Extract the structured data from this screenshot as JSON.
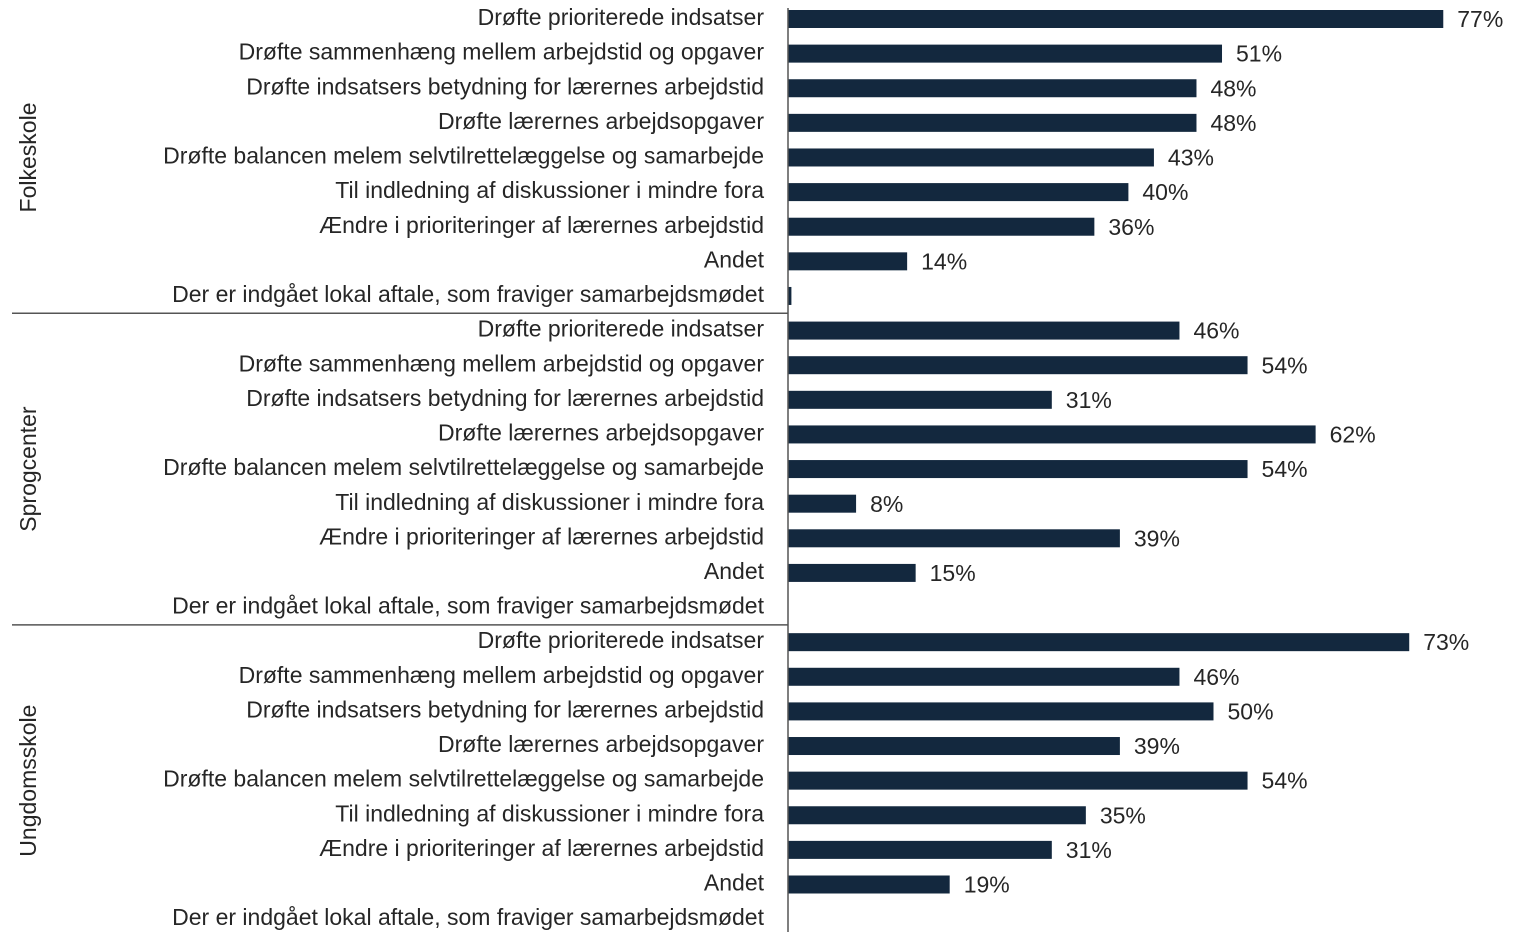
{
  "chart_data": {
    "type": "bar",
    "orientation": "horizontal",
    "color": "#13283e",
    "groups": [
      {
        "name": "Folkeskole",
        "categories": [
          "Drøfte prioriterede indsatser",
          "Drøfte sammenhæng mellem arbejdstid og opgaver",
          "Drøfte indsatsers betydning for lærernes arbejdstid",
          "Drøfte lærernes arbejdsopgaver",
          "Drøfte balancen melem selvtilrettelæggelse og samarbejde",
          "Til indledning af diskussioner i mindre fora",
          "Ændre i prioriteringer af lærernes arbejdstid",
          "Andet",
          "Der er indgået lokal aftale, som fraviger samarbejdsmødet"
        ],
        "values": [
          77,
          51,
          48,
          48,
          43,
          40,
          36,
          14,
          0.4
        ],
        "value_labels": [
          "77%",
          "51%",
          "48%",
          "48%",
          "43%",
          "40%",
          "36%",
          "14%",
          null
        ]
      },
      {
        "name": "Sprogcenter",
        "categories": [
          "Drøfte prioriterede indsatser",
          "Drøfte sammenhæng mellem arbejdstid og opgaver",
          "Drøfte indsatsers betydning for lærernes arbejdstid",
          "Drøfte lærernes arbejdsopgaver",
          "Drøfte balancen melem selvtilrettelæggelse og samarbejde",
          "Til indledning af diskussioner i mindre fora",
          "Ændre i prioriteringer af lærernes arbejdstid",
          "Andet",
          "Der er indgået lokal aftale, som fraviger samarbejdsmødet"
        ],
        "values": [
          46,
          54,
          31,
          62,
          54,
          8,
          39,
          15,
          0
        ],
        "value_labels": [
          "46%",
          "54%",
          "31%",
          "62%",
          "54%",
          "8%",
          "39%",
          "15%",
          null
        ]
      },
      {
        "name": "Ungdomsskole",
        "categories": [
          "Drøfte prioriterede indsatser",
          "Drøfte sammenhæng mellem arbejdstid og opgaver",
          "Drøfte indsatsers betydning for lærernes arbejdstid",
          "Drøfte lærernes arbejdsopgaver",
          "Drøfte balancen melem selvtilrettelæggelse og samarbejde",
          "Til indledning af diskussioner i mindre fora",
          "Ændre i prioriteringer af lærernes arbejdstid",
          "Andet",
          "Der er indgået lokal aftale, som fraviger samarbejdsmødet"
        ],
        "values": [
          73,
          46,
          50,
          39,
          54,
          35,
          31,
          19,
          0
        ],
        "value_labels": [
          "73%",
          "46%",
          "50%",
          "39%",
          "54%",
          "35%",
          "31%",
          "19%",
          null
        ]
      }
    ]
  }
}
